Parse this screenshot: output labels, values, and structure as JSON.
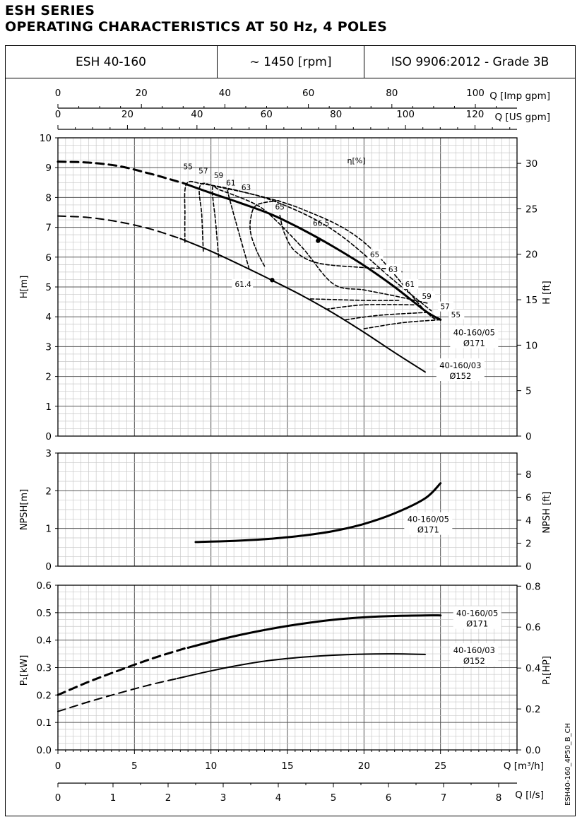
{
  "header": {
    "series_title": "ESH SERIES",
    "subtitle": "OPERATING CHARACTERISTICS AT 50 Hz, 4 POLES",
    "model": "ESH 40-160",
    "speed": "~ 1450 [rpm]",
    "standard": "ISO 9906:2012 - Grade 3B"
  },
  "side_code": "ESH40-160_4P50_B_CH",
  "chart_data": [
    {
      "type": "line",
      "panel": "head",
      "xlabel": "Q [m³/h]",
      "ylabel_left": "H[m]",
      "ylabel_right": "H [ft]",
      "xlim": [
        0,
        30
      ],
      "ylim": [
        0,
        10
      ],
      "ylim_right_ft": [
        0,
        32.8
      ],
      "y_ticks": [
        0,
        1,
        2,
        3,
        4,
        5,
        6,
        7,
        8,
        9,
        10
      ],
      "y_ticks_right": [
        0,
        5,
        10,
        15,
        20,
        25,
        30
      ],
      "top_axes": [
        {
          "label": "Q [Imp gpm]",
          "ticks": [
            0,
            20,
            40,
            60,
            80,
            100
          ]
        },
        {
          "label": "Q [US gpm]",
          "ticks": [
            0,
            20,
            40,
            60,
            80,
            100,
            120
          ]
        }
      ],
      "efficiency_label": "η[%]",
      "series": [
        {
          "name": "40-160/05",
          "label_line2": "Ø171",
          "dashed_x": [
            0,
            2,
            4,
            6,
            8.2
          ],
          "dashed_y": [
            9.2,
            9.17,
            9.05,
            8.8,
            8.48
          ],
          "solid_x": [
            8.2,
            10,
            12,
            14,
            16,
            18,
            20,
            22,
            24,
            25
          ],
          "solid_y": [
            8.48,
            8.15,
            7.8,
            7.42,
            6.92,
            6.35,
            5.72,
            5.0,
            4.2,
            3.9
          ]
        },
        {
          "name": "40-160/03",
          "label_line2": "Ø152",
          "dashed_x": [
            0,
            2,
            4,
            6,
            8
          ],
          "dashed_y": [
            7.38,
            7.33,
            7.18,
            6.95,
            6.62
          ],
          "solid_x": [
            8,
            10,
            12,
            14,
            16,
            18,
            20,
            22,
            24
          ],
          "solid_y": [
            6.62,
            6.2,
            5.72,
            5.22,
            4.7,
            4.12,
            3.48,
            2.8,
            2.15
          ]
        }
      ],
      "efficiency_curves": [
        {
          "label": "55",
          "x": [
            8.3,
            8.3,
            8.4,
            9.5,
            12,
            16,
            20,
            24,
            25
          ],
          "y": [
            6.5,
            7.4,
            8.45,
            8.45,
            8.2,
            7.6,
            6.5,
            4.2,
            3.9
          ]
        },
        {
          "label": "57",
          "x": [
            9.5,
            9.4,
            9.3,
            10.5,
            14,
            18,
            22,
            24.4
          ],
          "y": [
            6.2,
            7.4,
            8.4,
            8.35,
            7.9,
            6.9,
            5.2,
            4.2
          ]
        },
        {
          "label": "59",
          "x": [
            10.5,
            10.3,
            10.1,
            10.6,
            12.8,
            14,
            16,
            18,
            20,
            22,
            24.2
          ],
          "y": [
            6.0,
            7.2,
            8.3,
            8.25,
            7.8,
            7.35,
            6.3,
            5.1,
            4.9,
            4.7,
            4.45
          ]
        },
        {
          "label": "61",
          "x": [
            12.5,
            12,
            11.4,
            11.1,
            11.2
          ],
          "y": [
            5.6,
            6.5,
            7.6,
            8.2,
            8.25
          ]
        },
        {
          "label": "63",
          "x": [
            13.5,
            13,
            12.6,
            12.6,
            13,
            14.5
          ],
          "y": [
            5.7,
            6.2,
            6.8,
            7.3,
            7.75,
            7.9
          ]
        },
        {
          "label": "65",
          "x": [
            14.5,
            14.8,
            15.5,
            17,
            20,
            22,
            22.5
          ],
          "y": [
            7.4,
            6.8,
            6.2,
            5.8,
            5.65,
            5.6,
            5.5
          ]
        },
        {
          "label": "66.5",
          "x": [
            17
          ],
          "y": [
            6.55
          ]
        },
        {
          "label": "61.4",
          "x": [
            14
          ],
          "y": [
            5.23
          ]
        }
      ],
      "efficiency_points": [
        {
          "label": "66.5",
          "x": 17.0,
          "y": 6.55
        },
        {
          "label": "61.4",
          "x": 14.0,
          "y": 5.23
        }
      ],
      "efficiency_labels_left": [
        "55",
        "57",
        "59",
        "61",
        "63",
        "65",
        "66.5"
      ],
      "efficiency_labels_right": [
        "65",
        "63",
        "61",
        "59",
        "57",
        "55"
      ],
      "efficiency_label_left_point": "61.4",
      "grid": true
    },
    {
      "type": "line",
      "panel": "npsh",
      "ylabel_left": "NPSH[m]",
      "ylabel_right": "NPSH [ft]",
      "xlim": [
        0,
        30
      ],
      "ylim": [
        0,
        3
      ],
      "y_ticks": [
        0,
        1,
        2,
        3
      ],
      "y_ticks_right": [
        0,
        2,
        4,
        6,
        8
      ],
      "series": [
        {
          "name": "40-160/05",
          "label_line2": "Ø171",
          "x": [
            9,
            10,
            12,
            14,
            16,
            18,
            20,
            22,
            24,
            25
          ],
          "y": [
            0.64,
            0.65,
            0.68,
            0.73,
            0.81,
            0.93,
            1.12,
            1.4,
            1.8,
            2.2
          ]
        }
      ],
      "grid": true
    },
    {
      "type": "line",
      "panel": "power",
      "ylabel_left": "P₁[kW]",
      "ylabel_right": "P₁[HP]",
      "xlabel": "Q [m³/h]",
      "xlabel_secondary": "Q [l/s]",
      "xlim": [
        0,
        30
      ],
      "ylim": [
        0,
        0.6
      ],
      "x_ticks": [
        0,
        5,
        10,
        15,
        20,
        25
      ],
      "x_ticks_secondary": [
        0,
        1,
        2,
        3,
        4,
        5,
        6,
        7,
        8
      ],
      "y_ticks": [
        0.0,
        0.1,
        0.2,
        0.3,
        0.4,
        0.5,
        0.6
      ],
      "y_ticks_right": [
        "0.0",
        "0.2",
        "0.4",
        "0.6",
        "0.8"
      ],
      "series": [
        {
          "name": "40-160/05",
          "label_line2": "Ø171",
          "dashed_x": [
            0,
            2,
            4,
            6,
            8,
            8.5
          ],
          "dashed_y": [
            0.2,
            0.248,
            0.29,
            0.33,
            0.365,
            0.372
          ],
          "solid_x": [
            8.5,
            10,
            12,
            14,
            16,
            18,
            20,
            22,
            24,
            25
          ],
          "solid_y": [
            0.372,
            0.394,
            0.42,
            0.442,
            0.46,
            0.474,
            0.483,
            0.488,
            0.49,
            0.49
          ]
        },
        {
          "name": "40-160/03",
          "label_line2": "Ø152",
          "dashed_x": [
            0,
            2,
            4,
            6,
            7.8
          ],
          "dashed_y": [
            0.14,
            0.175,
            0.207,
            0.237,
            0.26
          ],
          "solid_x": [
            7.8,
            10,
            12,
            14,
            16,
            18,
            20,
            22,
            24
          ],
          "solid_y": [
            0.26,
            0.288,
            0.31,
            0.327,
            0.338,
            0.345,
            0.349,
            0.35,
            0.348
          ]
        }
      ],
      "grid": true
    }
  ]
}
